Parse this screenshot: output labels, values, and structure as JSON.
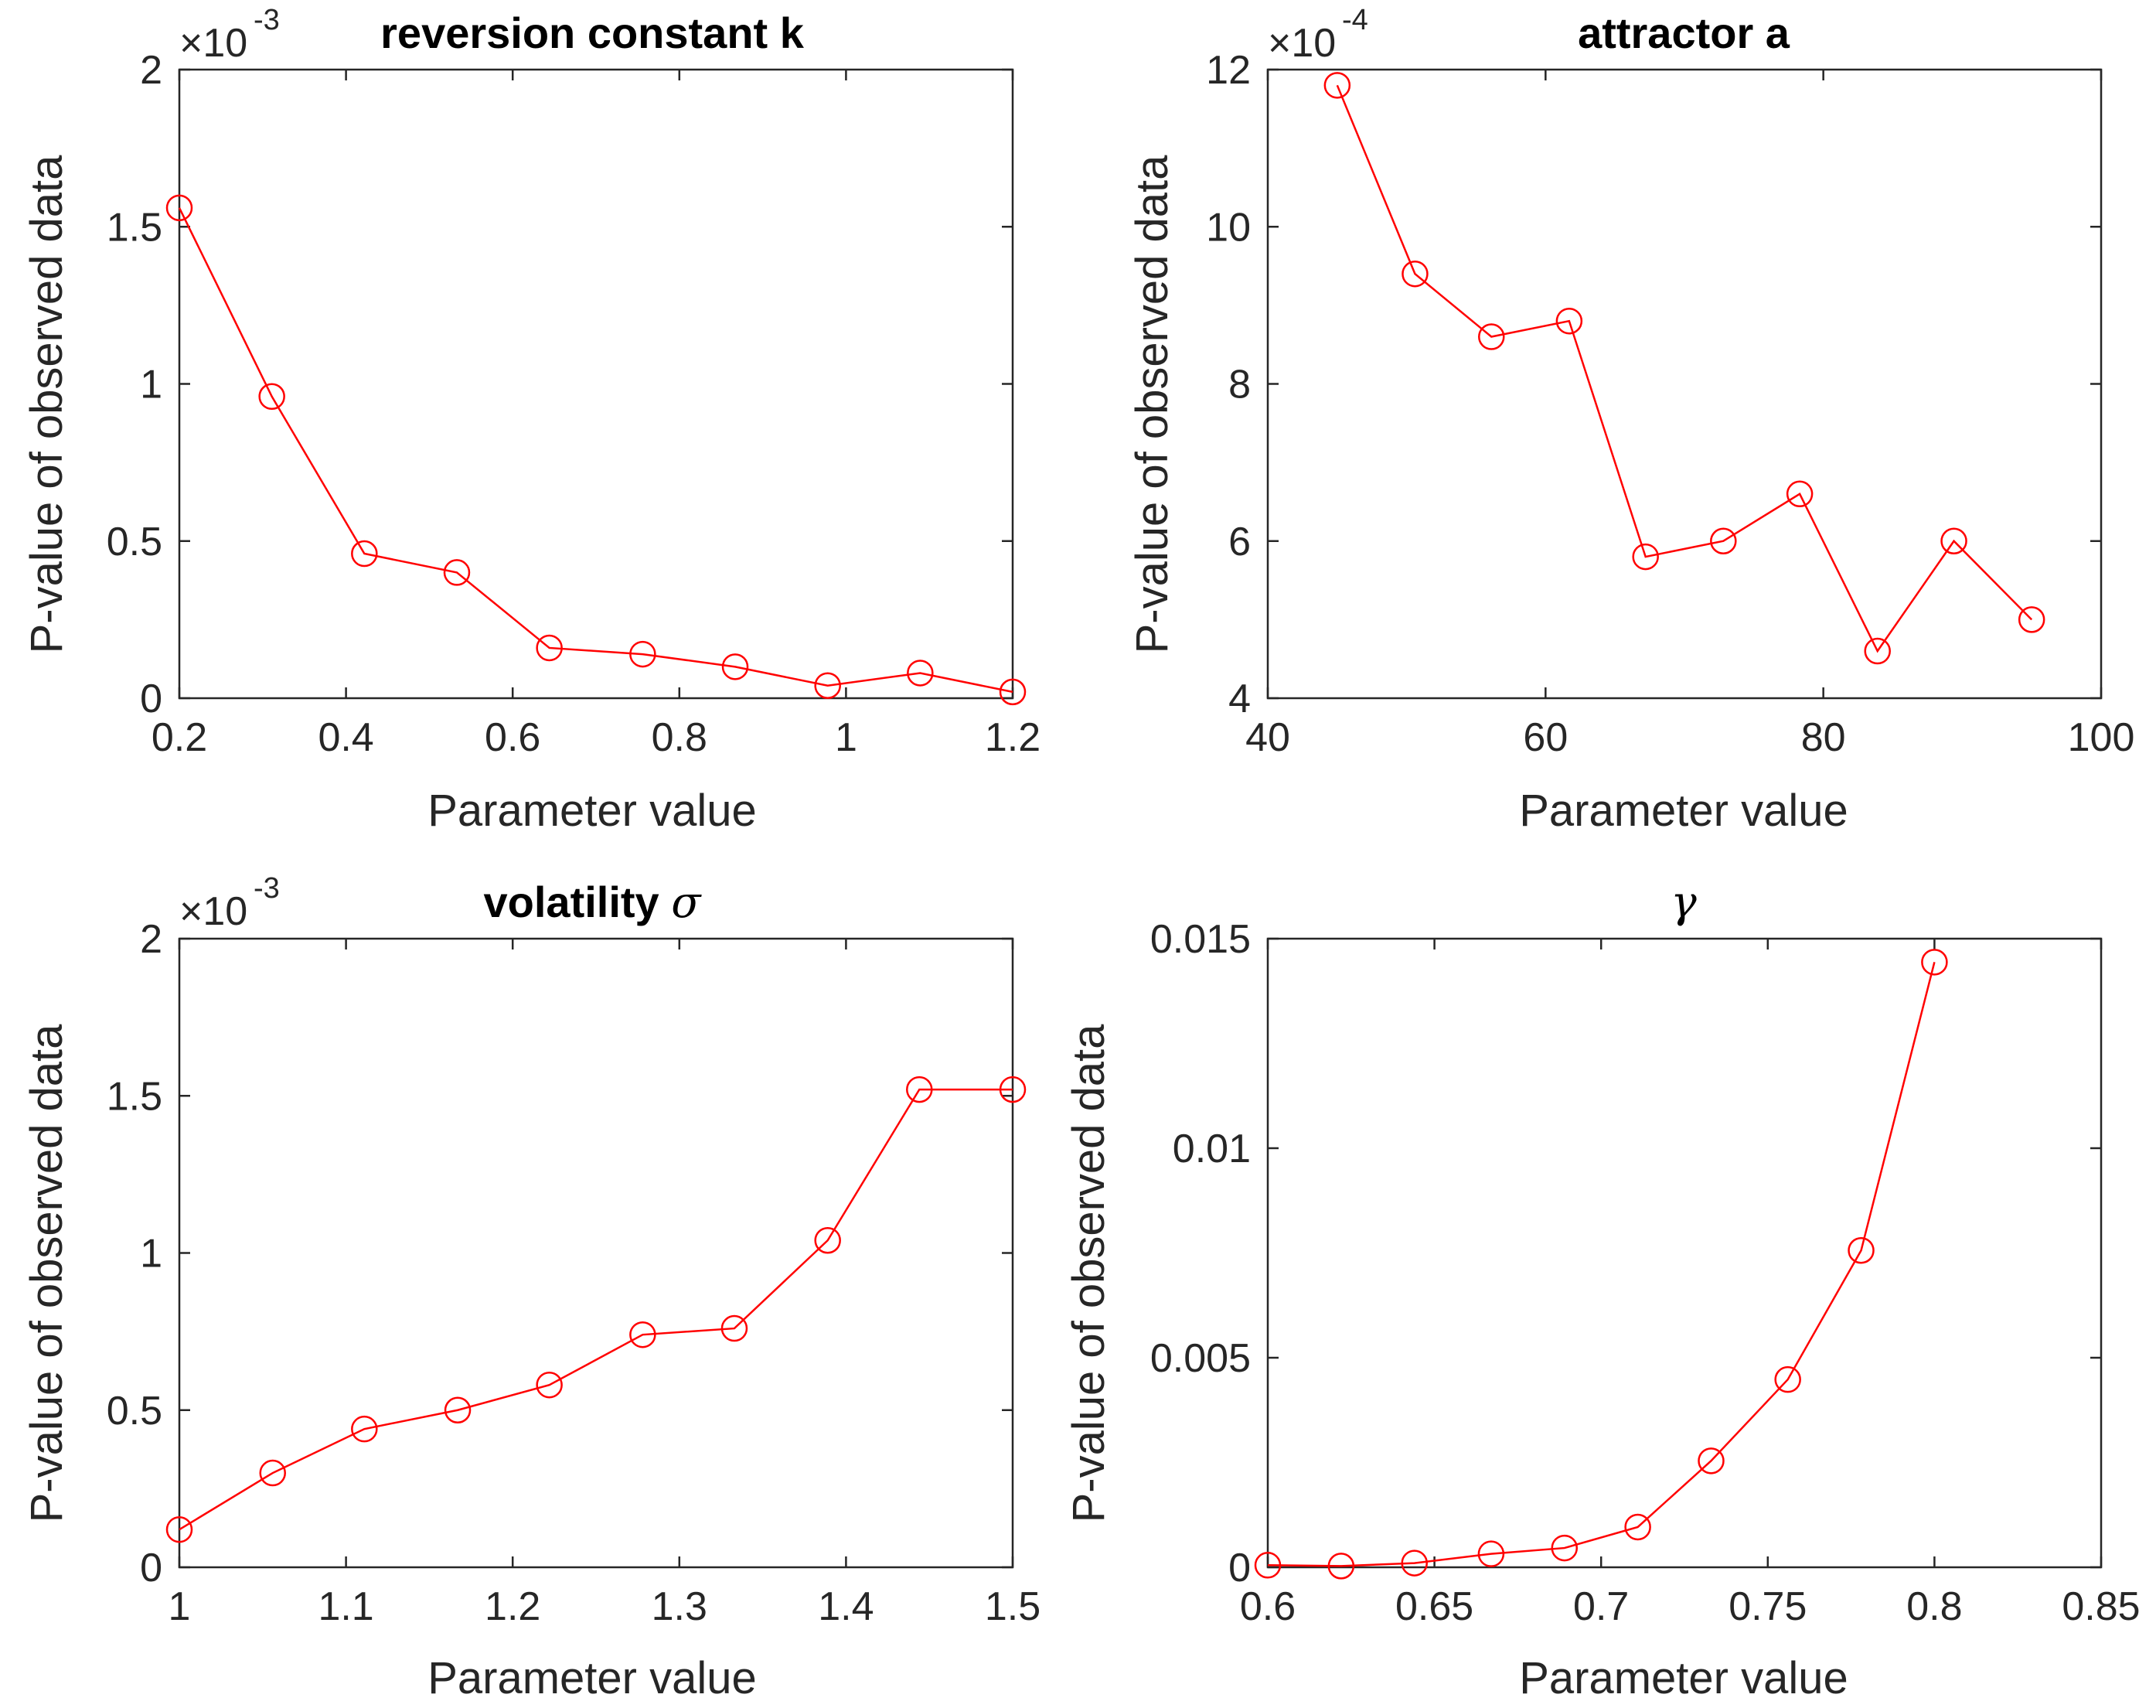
{
  "figure": {
    "colors": {
      "series": "#ff0000",
      "axes": "#262626",
      "background": "#ffffff"
    },
    "marker": "circle-open"
  },
  "chart_data": [
    {
      "type": "line",
      "title": "reversion constant k",
      "xlabel": "Parameter value",
      "ylabel": "P-value of observed data",
      "y_multiplier": {
        "base": "×10",
        "exponent": "-3"
      },
      "xlim": [
        0.2,
        1.2
      ],
      "ylim": [
        0,
        2
      ],
      "xticks": [
        0.2,
        0.4,
        0.6,
        0.8,
        1,
        1.2
      ],
      "xtick_labels": [
        "0.2",
        "0.4",
        "0.6",
        "0.8",
        "1",
        "1.2"
      ],
      "yticks": [
        0,
        0.5,
        1,
        1.5,
        2
      ],
      "ytick_labels": [
        "0",
        "0.5",
        "1",
        "1.5",
        "2"
      ],
      "series": [
        {
          "name": "reversion constant k",
          "x": [
            0.2,
            0.311,
            0.422,
            0.533,
            0.644,
            0.756,
            0.867,
            0.978,
            1.089,
            1.2
          ],
          "y": [
            1.56,
            0.96,
            0.46,
            0.4,
            0.16,
            0.14,
            0.1,
            0.04,
            0.08,
            0.02
          ]
        }
      ]
    },
    {
      "type": "line",
      "title": "attractor a",
      "xlabel": "Parameter value",
      "ylabel": "P-value of observed data",
      "y_multiplier": {
        "base": "×10",
        "exponent": "-4"
      },
      "xlim": [
        40,
        100
      ],
      "ylim": [
        4,
        12
      ],
      "xticks": [
        40,
        60,
        80,
        100
      ],
      "xtick_labels": [
        "40",
        "60",
        "80",
        "100"
      ],
      "yticks": [
        4,
        6,
        8,
        10,
        12
      ],
      "ytick_labels": [
        "4",
        "6",
        "8",
        "10",
        "12"
      ],
      "series": [
        {
          "name": "attractor a",
          "x": [
            45,
            50.6,
            56.1,
            61.7,
            67.2,
            72.8,
            78.3,
            83.9,
            89.4,
            95
          ],
          "y": [
            11.8,
            9.4,
            8.6,
            8.8,
            5.8,
            6.0,
            6.6,
            4.6,
            6.0,
            5.0
          ]
        }
      ]
    },
    {
      "type": "line",
      "title": "volatility σ",
      "xlabel": "Parameter value",
      "ylabel": "P-value of observed data",
      "y_multiplier": {
        "base": "×10",
        "exponent": "-3"
      },
      "xlim": [
        1,
        1.5
      ],
      "ylim": [
        0,
        2
      ],
      "xticks": [
        1,
        1.1,
        1.2,
        1.3,
        1.4,
        1.5
      ],
      "xtick_labels": [
        "1",
        "1.1",
        "1.2",
        "1.3",
        "1.4",
        "1.5"
      ],
      "yticks": [
        0,
        0.5,
        1,
        1.5,
        2
      ],
      "ytick_labels": [
        "0",
        "0.5",
        "1",
        "1.5",
        "2"
      ],
      "series": [
        {
          "name": "volatility σ",
          "x": [
            1.0,
            1.056,
            1.111,
            1.167,
            1.222,
            1.278,
            1.333,
            1.389,
            1.444,
            1.5
          ],
          "y": [
            0.12,
            0.3,
            0.44,
            0.5,
            0.58,
            0.74,
            0.76,
            1.04,
            1.52,
            1.52
          ]
        }
      ]
    },
    {
      "type": "line",
      "title": "γ",
      "xlabel": "Parameter value",
      "ylabel": "P-value of observed data",
      "xlim": [
        0.6,
        0.85
      ],
      "ylim": [
        0,
        0.015
      ],
      "xticks": [
        0.6,
        0.65,
        0.7,
        0.75,
        0.8,
        0.85
      ],
      "xtick_labels": [
        "0.6",
        "0.65",
        "0.7",
        "0.75",
        "0.8",
        "0.85"
      ],
      "yticks": [
        0,
        0.005,
        0.01,
        0.015
      ],
      "ytick_labels": [
        "0",
        "0.005",
        "0.01",
        "0.015"
      ],
      "series": [
        {
          "name": "γ",
          "x": [
            0.6,
            0.622,
            0.644,
            0.667,
            0.689,
            0.711,
            0.733,
            0.756,
            0.778,
            0.8
          ],
          "y": [
            5e-05,
            3e-05,
            0.0001,
            0.00032,
            0.00046,
            0.00096,
            0.00254,
            0.00448,
            0.00756,
            0.01444
          ]
        }
      ]
    }
  ]
}
